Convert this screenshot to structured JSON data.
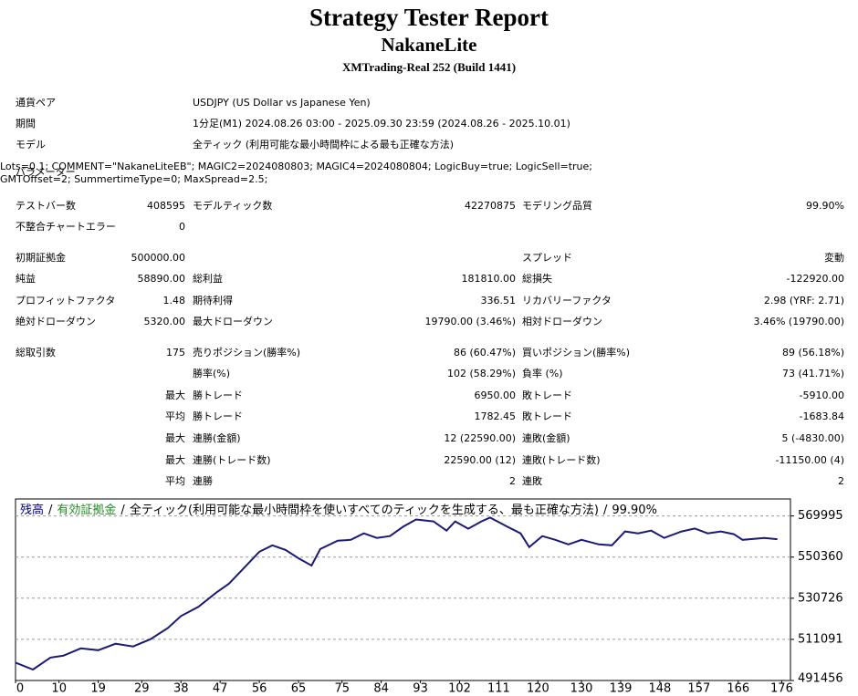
{
  "header": {
    "title": "Strategy Tester Report",
    "subtitle": "NakaneLite",
    "build": "XMTrading-Real 252 (Build 1441)"
  },
  "info": [
    [
      "通貨ペア",
      "USDJPY (US Dollar vs Japanese Yen)"
    ],
    [
      "期間",
      "1分足(M1) 2024.08.26 03:00 - 2025.09.30 23:59 (2024.08.26 - 2025.10.01)"
    ],
    [
      "モデル",
      "全ティック (利用可能な最小時間枠による最も正確な方法)"
    ],
    [
      "パラメーター",
      "Lots=0.1; COMMENT=\"NakaneLiteEB\"; MAGIC2=2024080803; MAGIC4=2024080804; LogicBuy=true; LogicSell=true; GMTOffset=2; SummertimeType=0; MaxSpread=2.5;"
    ]
  ],
  "stats": [
    [
      "テストバー数",
      "408595",
      "モデルティック数",
      "42270875",
      "モデリング品質",
      "99.90%"
    ],
    [
      "不整合チャートエラー",
      "0",
      null,
      null,
      null,
      null
    ],
    [
      "初期証拠金",
      "500000.00",
      null,
      null,
      "スプレッド",
      "変動"
    ],
    [
      "純益",
      "58890.00",
      "総利益",
      "181810.00",
      "総損失",
      "-122920.00"
    ],
    [
      "プロフィットファクタ",
      "1.48",
      "期待利得",
      "336.51",
      "リカバリーファクタ",
      "2.98 (YRF: 2.71)"
    ],
    [
      "絶対ドローダウン",
      "5320.00",
      "最大ドローダウン",
      "19790.00 (3.46%)",
      "相対ドローダウン",
      "3.46% (19790.00)"
    ],
    [
      "総取引数",
      "175",
      "売りポジション(勝率%)",
      "86 (60.47%)",
      "買いポジション(勝率%)",
      "89 (56.18%)"
    ],
    [
      null,
      null,
      "勝率(%)",
      "102 (58.29%)",
      "負率 (%)",
      "73 (41.71%)"
    ],
    [
      null,
      "最大",
      "勝トレード",
      "6950.00",
      "敗トレード",
      "-5910.00"
    ],
    [
      null,
      "平均",
      "勝トレード",
      "1782.45",
      "敗トレード",
      "-1683.84"
    ],
    [
      null,
      "最大",
      "連勝(金額)",
      "12 (22590.00)",
      "連敗(金額)",
      "5 (-4830.00)"
    ],
    [
      null,
      "最大",
      "連勝(トレード数)",
      "22590.00 (12)",
      "連敗(トレード数)",
      "-11150.00 (4)"
    ],
    [
      null,
      "平均",
      "連勝",
      "2",
      "連敗",
      "2"
    ]
  ],
  "chart_data": {
    "type": "line",
    "legend": [
      {
        "name": "残高",
        "color": "#000080"
      },
      {
        "name": "有効証拠金",
        "color": "#228b22"
      }
    ],
    "separator": "/",
    "subtitle": "全ティック(利用可能な最小時間枠を使いすべてのティックを生成する、最も正確な方法)",
    "quality": "99.90%",
    "x": [
      0,
      4,
      8,
      11,
      15,
      19,
      23,
      27,
      31,
      35,
      38,
      42,
      46,
      49,
      52,
      56,
      59,
      62,
      65,
      68,
      70,
      74,
      77,
      80,
      83,
      86,
      89,
      92,
      96,
      99,
      101,
      104,
      107,
      109,
      113,
      116,
      118,
      121,
      124,
      127,
      130,
      134,
      137,
      140,
      143,
      146,
      149,
      153,
      156,
      159,
      162,
      165,
      167,
      172,
      175
    ],
    "series": [
      {
        "name": "残高",
        "color": "#1a1a78",
        "values": [
          500000,
          496700,
          502400,
          503300,
          506800,
          505900,
          509000,
          507700,
          511200,
          516500,
          522200,
          526600,
          533200,
          537600,
          544100,
          552900,
          556000,
          553800,
          549800,
          546300,
          554200,
          558200,
          558600,
          561700,
          559500,
          560400,
          564800,
          568300,
          567400,
          563000,
          567400,
          563900,
          567400,
          569200,
          564800,
          561700,
          555100,
          560400,
          558600,
          556400,
          558600,
          556400,
          556000,
          562600,
          561700,
          563000,
          559500,
          562600,
          564000,
          561700,
          562600,
          561300,
          558600,
          559500,
          558890
        ]
      }
    ],
    "xlim": [
      0,
      178
    ],
    "ylim": [
      491456,
      578100
    ],
    "xticks": [
      0,
      10,
      19,
      29,
      38,
      47,
      56,
      65,
      75,
      84,
      93,
      102,
      111,
      120,
      130,
      139,
      148,
      157,
      166,
      176
    ],
    "yticks": [
      491456,
      511091,
      530726,
      550360,
      569995
    ],
    "grid": true
  }
}
